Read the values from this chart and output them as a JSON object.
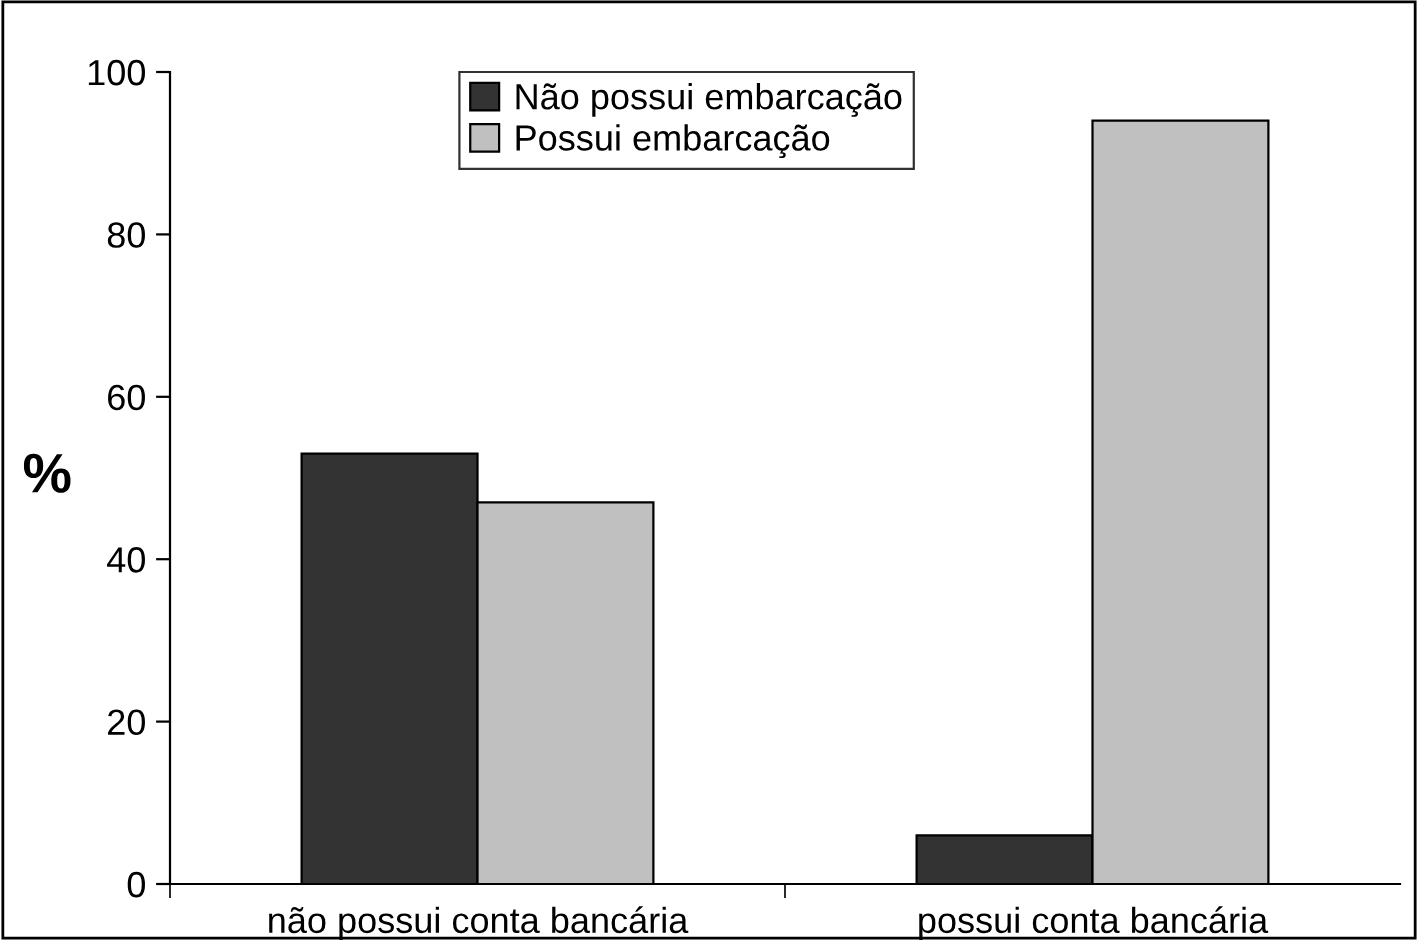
{
  "chart_data": {
    "type": "bar",
    "ylabel": "%",
    "categories": [
      "não possui conta bancária",
      "possui conta bancária"
    ],
    "series": [
      {
        "name": "Não possui embarcação",
        "color": "#333333",
        "values": [
          53,
          6
        ]
      },
      {
        "name": "Possui embarcação",
        "color": "#c0c0c0",
        "values": [
          47,
          94
        ]
      }
    ],
    "ylim": [
      0,
      100
    ],
    "yticks": [
      0,
      20,
      40,
      60,
      80,
      100
    ],
    "grid": false,
    "legend": "top"
  }
}
